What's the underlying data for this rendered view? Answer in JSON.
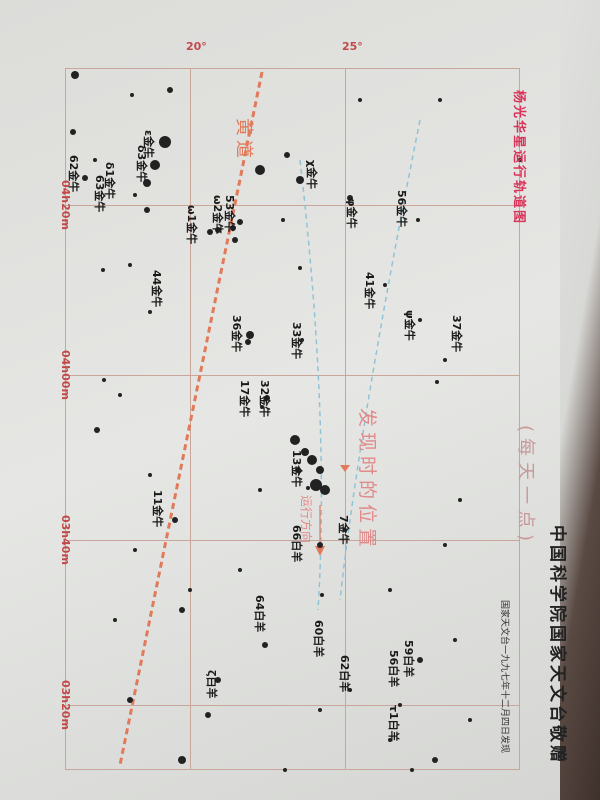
{
  "title": "杨光华星运行轨道图",
  "subtitle": "(每天一点)",
  "discovery_note": "国家天文台一九九七年十二月四日发现",
  "donor": "中国科学院国家天文台敬赠",
  "ecliptic_label": "黄道",
  "discovery_position_label": "发现时的位置",
  "direction_label": "运行方向",
  "axes": {
    "dec": [
      "20°",
      "25°"
    ],
    "ra": [
      "04h20m",
      "04h00m",
      "03h40m",
      "03h20m"
    ]
  },
  "colors": {
    "title": "#d8345a",
    "ecliptic": "#e07a5a",
    "grid": "#c9a59a",
    "orbit": "#8fc3d6"
  },
  "stars": [
    "ε金牛",
    "δ3金牛",
    "δ1金牛",
    "63金牛",
    "62金牛",
    "χ金牛",
    "φ金牛",
    "56金牛",
    "53金牛",
    "ω2金牛",
    "ω1金牛",
    "44金牛",
    "41金牛",
    "ψ金牛",
    "37金牛",
    "36金牛",
    "33金牛",
    "32金牛",
    "17金牛",
    "13金牛",
    "11金牛",
    "7金牛",
    "66白羊",
    "64白羊",
    "60白羊",
    "62白羊",
    "59白羊",
    "56白羊",
    "τ1白羊",
    "ζ白羊"
  ]
}
